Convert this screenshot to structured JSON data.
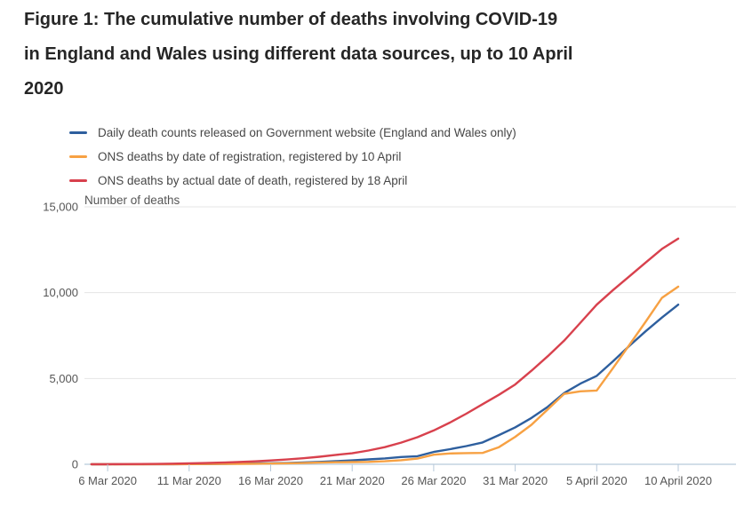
{
  "title": {
    "lines": [
      "Figure 1: The cumulative number of deaths involving COVID-19",
      "in England and Wales using different data sources, up to 10 April",
      "2020"
    ]
  },
  "chart_data": {
    "type": "line",
    "title": "Figure 1: The cumulative number of deaths involving COVID-19 in England and Wales using different data sources, up to 10 April 2020",
    "xlabel": "",
    "ylabel": "Number of deaths",
    "ylim": [
      0,
      15000
    ],
    "yticks": [
      0,
      5000,
      10000,
      15000
    ],
    "grid": true,
    "legend_position": "top-left",
    "x": [
      "5 Mar 2020",
      "6 Mar 2020",
      "7 Mar 2020",
      "8 Mar 2020",
      "9 Mar 2020",
      "10 Mar 2020",
      "11 Mar 2020",
      "12 Mar 2020",
      "13 Mar 2020",
      "14 Mar 2020",
      "15 Mar 2020",
      "16 Mar 2020",
      "17 Mar 2020",
      "18 Mar 2020",
      "19 Mar 2020",
      "20 Mar 2020",
      "21 Mar 2020",
      "22 Mar 2020",
      "23 Mar 2020",
      "24 Mar 2020",
      "25 Mar 2020",
      "26 Mar 2020",
      "27 Mar 2020",
      "28 Mar 2020",
      "29 Mar 2020",
      "30 Mar 2020",
      "31 Mar 2020",
      "1 Apr 2020",
      "2 Apr 2020",
      "3 Apr 2020",
      "4 Apr 2020",
      "5 Apr 2020",
      "6 Apr 2020",
      "7 Apr 2020",
      "8 Apr 2020",
      "9 Apr 2020",
      "10 Apr 2020"
    ],
    "xticks": [
      {
        "label": "6 Mar 2020",
        "index": 1
      },
      {
        "label": "11 Mar 2020",
        "index": 6
      },
      {
        "label": "16 Mar 2020",
        "index": 11
      },
      {
        "label": "21 Mar 2020",
        "index": 16
      },
      {
        "label": "26 Mar 2020",
        "index": 21
      },
      {
        "label": "31 Mar 2020",
        "index": 26
      },
      {
        "label": "5 April 2020",
        "index": 31
      },
      {
        "label": "10 April 2020",
        "index": 36
      }
    ],
    "series": [
      {
        "name": "Daily death counts released on Government website (England and Wales only)",
        "color": "#2e5f9e",
        "values": [
          1,
          2,
          3,
          4,
          5,
          7,
          9,
          12,
          21,
          35,
          55,
          60,
          75,
          105,
          140,
          180,
          230,
          285,
          340,
          425,
          470,
          720,
          880,
          1060,
          1270,
          1700,
          2150,
          2700,
          3350,
          4150,
          4700,
          5150,
          6000,
          6900,
          7750,
          8550,
          9300
        ]
      },
      {
        "name": "ONS deaths by date of registration, registered by 10 April",
        "color": "#f7a143",
        "values": [
          0,
          1,
          2,
          2,
          3,
          7,
          12,
          15,
          23,
          26,
          30,
          40,
          55,
          75,
          100,
          120,
          130,
          140,
          175,
          240,
          330,
          560,
          630,
          650,
          660,
          1000,
          1600,
          2300,
          3200,
          4100,
          4250,
          4300,
          5600,
          6950,
          8300,
          9700,
          10350
        ]
      },
      {
        "name": "ONS deaths by actual date of death, registered by 18 April",
        "color": "#d8414d",
        "values": [
          3,
          5,
          8,
          13,
          21,
          35,
          50,
          70,
          97,
          130,
          170,
          220,
          280,
          350,
          440,
          550,
          640,
          800,
          1000,
          1260,
          1580,
          1970,
          2430,
          2950,
          3500,
          4050,
          4650,
          5450,
          6300,
          7200,
          8250,
          9300,
          10150,
          10950,
          11750,
          12550,
          13150
        ]
      }
    ]
  }
}
